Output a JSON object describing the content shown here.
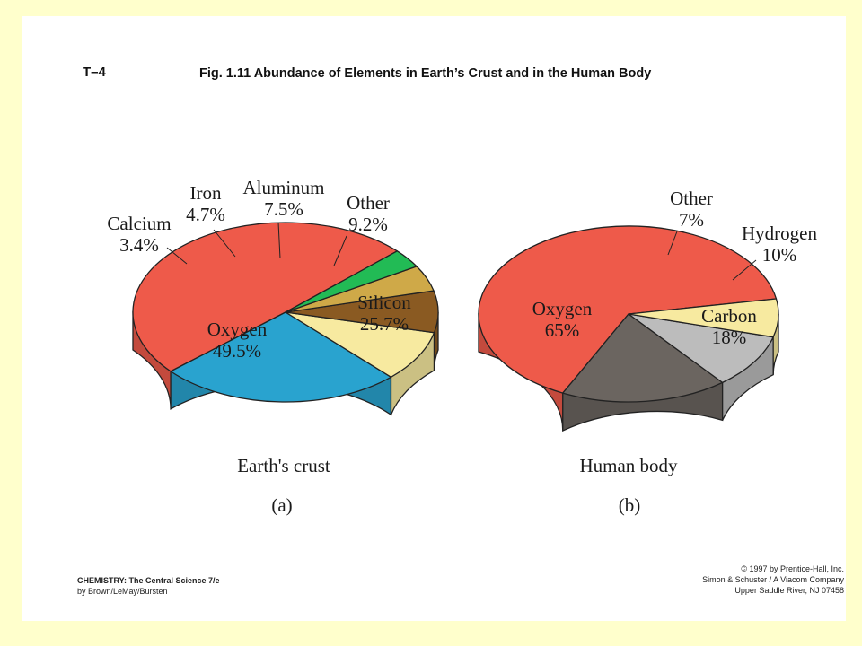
{
  "header": {
    "code": "T–4",
    "title": "Fig. 1.11  Abundance of Elements in Earth’s Crust and in the Human Body"
  },
  "colors": {
    "page_background": "#ffffcc",
    "slide_background": "#ffffff",
    "oxygen": "#ee5a4a",
    "silicon": "#29a3cf",
    "other": "#f7eaa0",
    "aluminum": "#8a5a22",
    "iron": "#cfa948",
    "calcium": "#22bb55",
    "hydrogen": "#bcbcbc",
    "carbon": "#6b6560"
  },
  "chart_data": [
    {
      "type": "pie",
      "title": "Earth's crust",
      "panel_label": "(a)",
      "slices": [
        {
          "label": "Oxygen",
          "value_label": "49.5%",
          "value": 49.5,
          "color": "#ee5a4a"
        },
        {
          "label": "Silicon",
          "value_label": "25.7%",
          "value": 25.7,
          "color": "#29a3cf"
        },
        {
          "label": "Other",
          "value_label": "9.2%",
          "value": 9.2,
          "color": "#f7eaa0"
        },
        {
          "label": "Aluminum",
          "value_label": "7.5%",
          "value": 7.5,
          "color": "#8a5a22"
        },
        {
          "label": "Iron",
          "value_label": "4.7%",
          "value": 4.7,
          "color": "#cfa948"
        },
        {
          "label": "Calcium",
          "value_label": "3.4%",
          "value": 3.4,
          "color": "#22bb55"
        }
      ]
    },
    {
      "type": "pie",
      "title": "Human body",
      "panel_label": "(b)",
      "slices": [
        {
          "label": "Oxygen",
          "value_label": "65%",
          "value": 65,
          "color": "#ee5a4a"
        },
        {
          "label": "Carbon",
          "value_label": "18%",
          "value": 18,
          "color": "#6b6560"
        },
        {
          "label": "Hydrogen",
          "value_label": "10%",
          "value": 10,
          "color": "#bcbcbc"
        },
        {
          "label": "Other",
          "value_label": "7%",
          "value": 7,
          "color": "#f7eaa0"
        }
      ]
    }
  ],
  "footer": {
    "book": "CHEMISTRY: The Central Science 7/e",
    "authors": "by Brown/LeMay/Bursten",
    "copyright": "© 1997 by Prentice-Hall, Inc.",
    "publisher": "Simon & Schuster / A Viacom Company",
    "address": "Upper Saddle River, NJ 07458"
  }
}
